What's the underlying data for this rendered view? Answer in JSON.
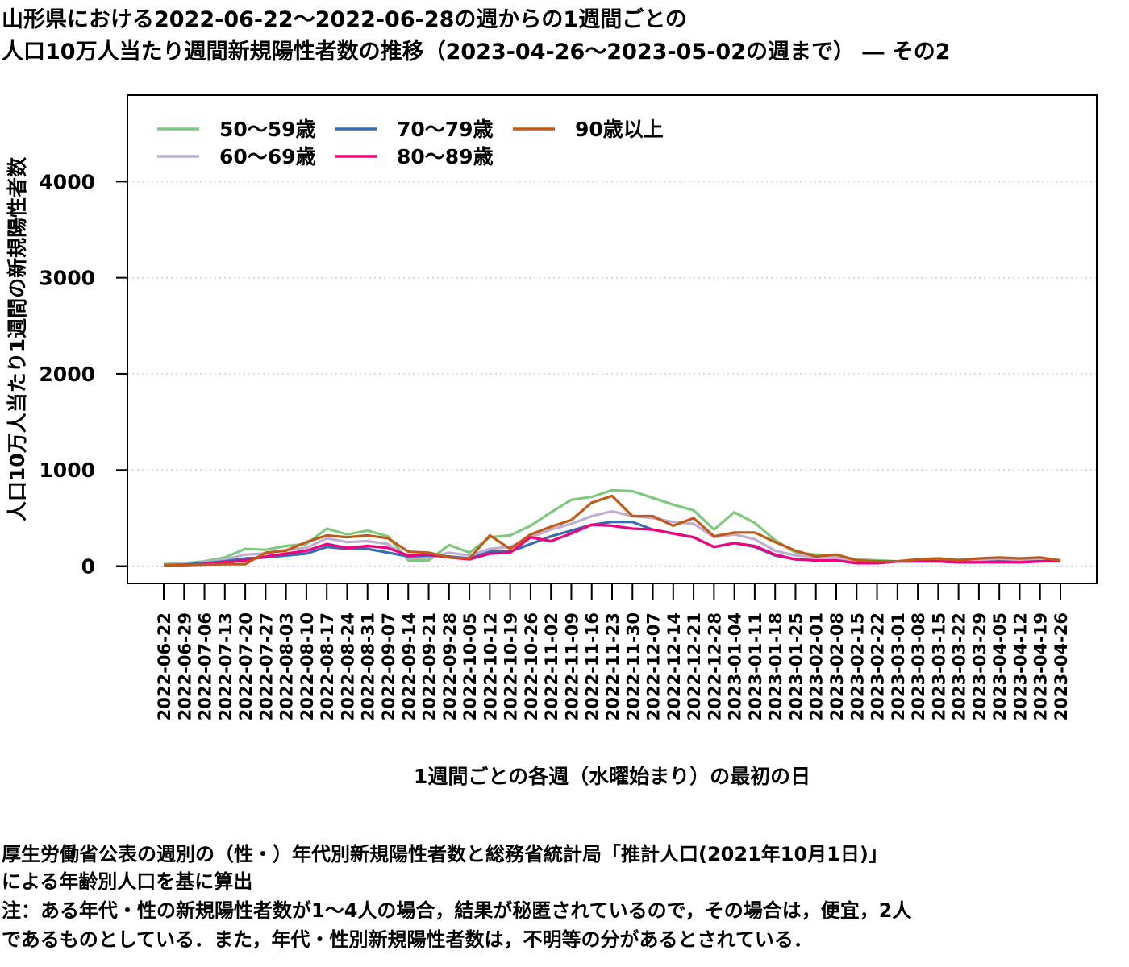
{
  "title_line1": "山形県における2022-06-22～2022-06-28の週からの1週間ごとの",
  "title_line2": "人口10万人当たり週間新規陽性者数の推移（2023-04-26～2023-05-02の週まで） ― その2",
  "notes": [
    "厚生労働省公表の週別の（性・）年代別新規陽性者数と総務省統計局「推計人口(2021年10月1日)」",
    "による年齢別人口を基に算出",
    "注：ある年代・性の新規陽性者数が1～4人の場合，結果が秘匿されているので，その場合は，便宜，2人",
    "であるものとしている．また，年代・性別新規陽性者数は，不明等の分があるとされている．"
  ],
  "chart_data": {
    "type": "line",
    "xlabel": "1週間ごとの各週（水曜始まり）の最初の日",
    "ylabel": "人口10万人当たり1週間の新規陽性者数",
    "ylim": [
      -180,
      4900
    ],
    "yticks": [
      0,
      1000,
      2000,
      3000,
      4000
    ],
    "grid": true,
    "legend_position": "top-left",
    "x": [
      "2022-06-22",
      "2022-06-29",
      "2022-07-06",
      "2022-07-13",
      "2022-07-20",
      "2022-07-27",
      "2022-08-03",
      "2022-08-10",
      "2022-08-17",
      "2022-08-24",
      "2022-08-31",
      "2022-09-07",
      "2022-09-14",
      "2022-09-21",
      "2022-09-28",
      "2022-10-05",
      "2022-10-12",
      "2022-10-19",
      "2022-10-26",
      "2022-11-02",
      "2022-11-09",
      "2022-11-16",
      "2022-11-23",
      "2022-11-30",
      "2022-12-07",
      "2022-12-14",
      "2022-12-21",
      "2022-12-28",
      "2023-01-04",
      "2023-01-11",
      "2023-01-18",
      "2023-01-25",
      "2023-02-01",
      "2023-02-08",
      "2023-02-15",
      "2023-02-22",
      "2023-03-01",
      "2023-03-08",
      "2023-03-15",
      "2023-03-22",
      "2023-03-29",
      "2023-04-05",
      "2023-04-12",
      "2023-04-19",
      "2023-04-26"
    ],
    "series": [
      {
        "name": "50～59歳",
        "color": "#7fc97f",
        "values": [
          20,
          30,
          50,
          90,
          180,
          170,
          210,
          230,
          390,
          330,
          370,
          310,
          60,
          60,
          220,
          140,
          300,
          320,
          420,
          560,
          690,
          720,
          790,
          780,
          710,
          640,
          580,
          380,
          560,
          450,
          270,
          140,
          120,
          110,
          70,
          60,
          50,
          60,
          80,
          70,
          70,
          80,
          70,
          80,
          60
        ]
      },
      {
        "name": "60～69歳",
        "color": "#beaed4",
        "values": [
          15,
          25,
          40,
          70,
          120,
          130,
          170,
          190,
          290,
          250,
          260,
          230,
          80,
          90,
          140,
          110,
          180,
          200,
          300,
          380,
          440,
          520,
          570,
          520,
          500,
          460,
          440,
          300,
          330,
          280,
          160,
          110,
          100,
          90,
          50,
          40,
          50,
          60,
          60,
          50,
          60,
          60,
          60,
          70,
          60
        ]
      },
      {
        "name": "70～79歳",
        "color": "#386cb0",
        "values": [
          10,
          15,
          30,
          50,
          80,
          90,
          110,
          130,
          200,
          180,
          180,
          140,
          100,
          110,
          100,
          80,
          150,
          150,
          230,
          310,
          370,
          430,
          460,
          460,
          380,
          340,
          300,
          200,
          240,
          200,
          110,
          70,
          60,
          60,
          30,
          30,
          50,
          50,
          50,
          40,
          40,
          50,
          40,
          50,
          50
        ]
      },
      {
        "name": "80～89歳",
        "color": "#f0027f",
        "values": [
          10,
          10,
          20,
          40,
          60,
          100,
          130,
          160,
          230,
          190,
          210,
          190,
          110,
          120,
          90,
          70,
          130,
          140,
          300,
          260,
          340,
          430,
          420,
          390,
          380,
          340,
          300,
          200,
          240,
          210,
          120,
          70,
          60,
          60,
          30,
          30,
          50,
          50,
          50,
          40,
          40,
          40,
          40,
          50,
          60
        ]
      },
      {
        "name": "90歳以上",
        "color": "#bf5b17",
        "values": [
          10,
          10,
          15,
          20,
          20,
          140,
          160,
          250,
          320,
          300,
          320,
          290,
          150,
          140,
          90,
          80,
          320,
          180,
          330,
          410,
          480,
          660,
          730,
          520,
          520,
          420,
          500,
          310,
          350,
          350,
          250,
          160,
          100,
          120,
          60,
          50,
          50,
          70,
          80,
          60,
          80,
          90,
          80,
          90,
          60
        ]
      }
    ]
  }
}
